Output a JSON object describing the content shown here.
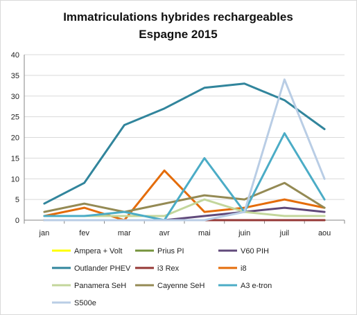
{
  "chart_data": {
    "type": "line",
    "title": "Immatriculations hybrides rechargeables",
    "subtitle": "Espagne 2015",
    "xlabel": "",
    "ylabel": "",
    "categories": [
      "jan",
      "fev",
      "mar",
      "avr",
      "mai",
      "juin",
      "juil",
      "aou"
    ],
    "ylim": [
      0,
      40
    ],
    "yticks": [
      0,
      5,
      10,
      15,
      20,
      25,
      30,
      35,
      40
    ],
    "grid": true,
    "legend_position": "bottom",
    "series": [
      {
        "name": "Ampera + Volt",
        "color": "#ffff00",
        "values": [
          0,
          0,
          0,
          0,
          0,
          0,
          0,
          0
        ]
      },
      {
        "name": "Prius PI",
        "color": "#76933c",
        "values": [
          0,
          0,
          0,
          0,
          0,
          0,
          0,
          0
        ]
      },
      {
        "name": "V60 PIH",
        "color": "#60497a",
        "values": [
          0,
          0,
          0,
          0,
          1,
          2,
          3,
          2
        ]
      },
      {
        "name": "Outlander PHEV",
        "color": "#31859c",
        "values": [
          4,
          9,
          23,
          27,
          32,
          33,
          29,
          22
        ]
      },
      {
        "name": "i3 Rex",
        "color": "#953735",
        "values": [
          0,
          0,
          0,
          0,
          0,
          0,
          0,
          0
        ]
      },
      {
        "name": "i8",
        "color": "#e46c0a",
        "values": [
          1,
          3,
          0,
          12,
          2,
          3,
          5,
          3
        ]
      },
      {
        "name": "Panamera SeH",
        "color": "#c3d69b",
        "values": [
          1,
          1,
          1,
          1,
          5,
          2,
          1,
          1
        ]
      },
      {
        "name": "Cayenne SeH",
        "color": "#948a54",
        "values": [
          2,
          4,
          2,
          4,
          6,
          5,
          9,
          3
        ]
      },
      {
        "name": "A3 e-tron",
        "color": "#4bacc6",
        "values": [
          1,
          1,
          2,
          0,
          15,
          2,
          21,
          5
        ]
      },
      {
        "name": "S500e",
        "color": "#b9cde5",
        "values": [
          0,
          0,
          0,
          0,
          0,
          2,
          34,
          10
        ]
      }
    ]
  }
}
